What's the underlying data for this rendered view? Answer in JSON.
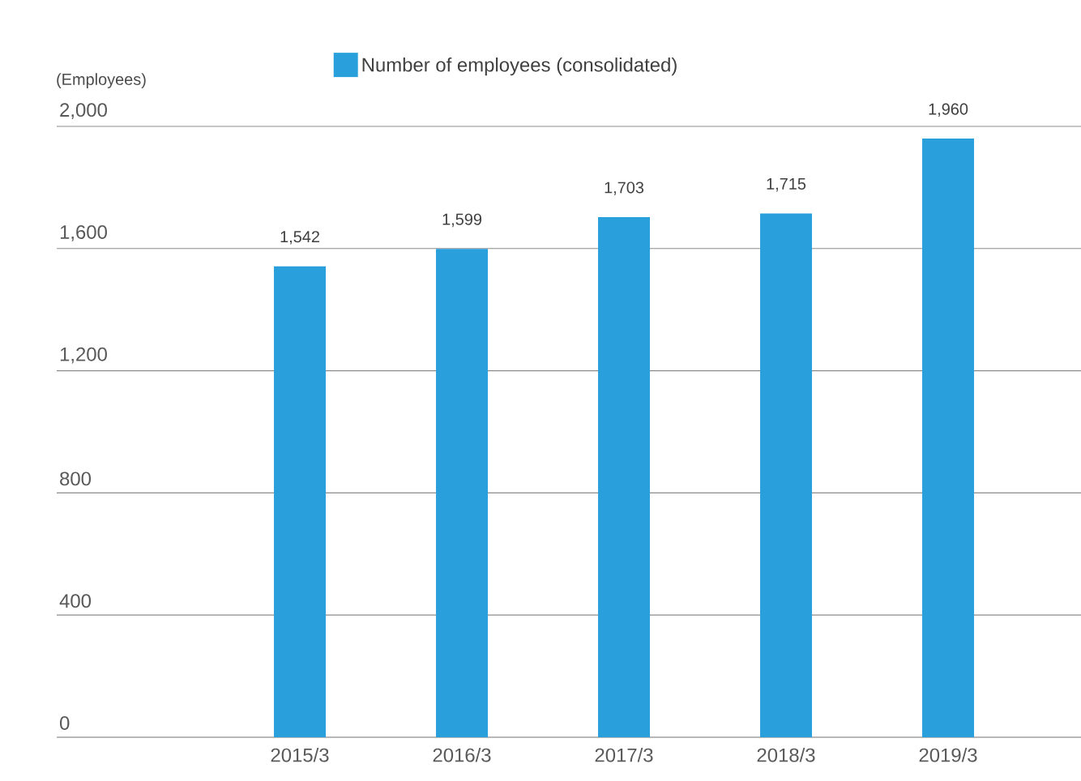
{
  "chart_data": {
    "type": "bar",
    "ylabel": "(Employees)",
    "categories": [
      "2015/3",
      "2016/3",
      "2017/3",
      "2018/3",
      "2019/3"
    ],
    "series": [
      {
        "name": "Number of employees (consolidated)",
        "color": "#29a0dc",
        "values": [
          1542,
          1599,
          1703,
          1715,
          1960
        ],
        "value_labels": [
          "1,542",
          "1,599",
          "1,703",
          "1,715",
          "1,960"
        ]
      }
    ],
    "ylim": [
      0,
      2000
    ],
    "yticks": [
      0,
      400,
      800,
      {
        "value": 1200,
        "label": "1,200"
      },
      {
        "value": 1600,
        "label": "1,600"
      },
      {
        "value": 2000,
        "label": "2,000"
      }
    ],
    "grid": "y",
    "legend": "top"
  }
}
